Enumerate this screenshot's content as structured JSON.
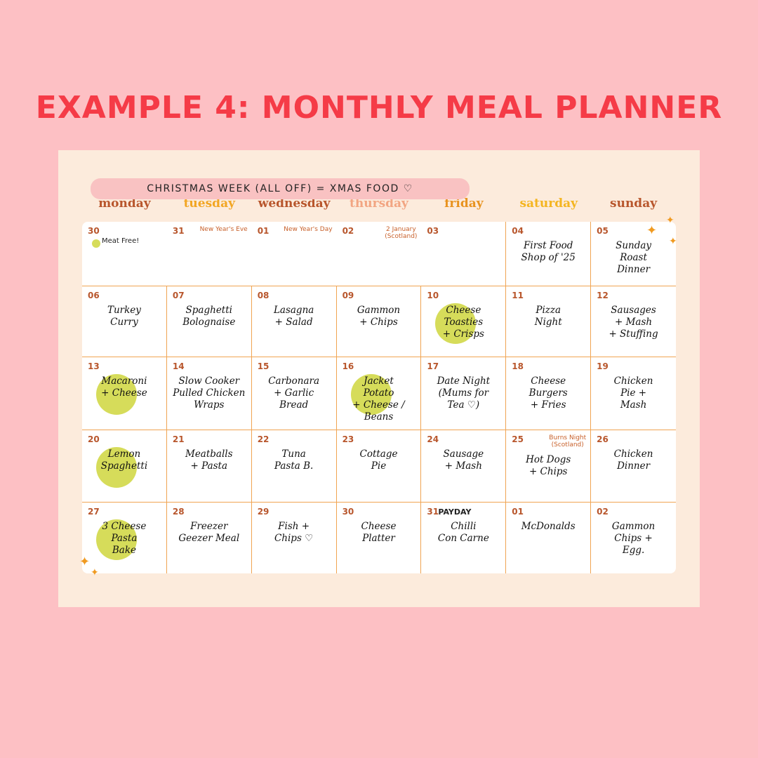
{
  "title": "EXAMPLE 4: MONTHLY MEAL PLANNER",
  "days": [
    "monday",
    "tuesday",
    "wednesday",
    "thursday",
    "friday",
    "saturday",
    "sunday"
  ],
  "banner": "CHRISTMAS WEEK (ALL OFF) = XMAS FOOD ♡",
  "weeks": [
    [
      {
        "date": "30",
        "note": "Meat Free!"
      },
      {
        "date": "31",
        "event": [
          "New Year's Eve"
        ]
      },
      {
        "date": "01",
        "event": [
          "New Year's Day"
        ]
      },
      {
        "date": "02",
        "event": [
          "2 January",
          "(Scotland)"
        ]
      },
      {
        "date": "03"
      },
      {
        "date": "04",
        "meal": [
          "First Food",
          "Shop of '25"
        ]
      },
      {
        "date": "05",
        "meal": [
          "Sunday",
          "Roast",
          "Dinner"
        ]
      }
    ],
    [
      {
        "date": "06",
        "meal": [
          "Turkey",
          "Curry"
        ]
      },
      {
        "date": "07",
        "meal": [
          "Spaghetti",
          "Bolognaise"
        ]
      },
      {
        "date": "08",
        "meal": [
          "Lasagna",
          "+ Salad"
        ]
      },
      {
        "date": "09",
        "meal": [
          "Gammon",
          "+ Chips"
        ]
      },
      {
        "date": "10",
        "meal": [
          "Cheese",
          "Toasties",
          "+ Crisps"
        ],
        "highlight": true
      },
      {
        "date": "11",
        "meal": [
          "Pizza",
          "Night"
        ]
      },
      {
        "date": "12",
        "meal": [
          "Sausages",
          "+ Mash",
          "+ Stuffing"
        ]
      }
    ],
    [
      {
        "date": "13",
        "meal": [
          "Macaroni",
          "+ Cheese"
        ],
        "highlight": true
      },
      {
        "date": "14",
        "meal": [
          "Slow Cooker",
          "Pulled Chicken",
          "Wraps"
        ]
      },
      {
        "date": "15",
        "meal": [
          "Carbonara",
          "+ Garlic",
          "Bread"
        ]
      },
      {
        "date": "16",
        "meal": [
          "Jacket",
          "Potato",
          "+ Cheese /",
          "Beans"
        ],
        "highlight": true
      },
      {
        "date": "17",
        "meal": [
          "Date Night",
          "(Mums for",
          "Tea ♡)"
        ]
      },
      {
        "date": "18",
        "meal": [
          "Cheese",
          "Burgers",
          "+ Fries"
        ]
      },
      {
        "date": "19",
        "meal": [
          "Chicken",
          "Pie +",
          "Mash"
        ]
      }
    ],
    [
      {
        "date": "20",
        "meal": [
          "Lemon",
          "Spaghetti"
        ],
        "highlight": true
      },
      {
        "date": "21",
        "meal": [
          "Meatballs",
          "+ Pasta"
        ]
      },
      {
        "date": "22",
        "meal": [
          "Tuna",
          "Pasta B."
        ]
      },
      {
        "date": "23",
        "meal": [
          "Cottage",
          "Pie"
        ]
      },
      {
        "date": "24",
        "meal": [
          "Sausage",
          "+ Mash"
        ]
      },
      {
        "date": "25",
        "event": [
          "Burns Night",
          "(Scotland)"
        ],
        "meal": [
          "Hot Dogs",
          "+ Chips"
        ]
      },
      {
        "date": "26",
        "meal": [
          "Chicken",
          "Dinner"
        ]
      }
    ],
    [
      {
        "date": "27",
        "meal": [
          "3 Cheese",
          "Pasta",
          "Bake"
        ],
        "highlight": true
      },
      {
        "date": "28",
        "meal": [
          "Freezer",
          "Geezer Meal"
        ]
      },
      {
        "date": "29",
        "meal": [
          "Fish +",
          "Chips ♡"
        ]
      },
      {
        "date": "30",
        "meal": [
          "Cheese",
          "Platter"
        ]
      },
      {
        "date": "31",
        "note": "PAYDAY",
        "meal": [
          "Chilli",
          "Con Carne"
        ]
      },
      {
        "date": "01",
        "meal": [
          "McDonalds"
        ]
      },
      {
        "date": "02",
        "meal": [
          "Gammon",
          "Chips +",
          "Egg."
        ]
      }
    ]
  ]
}
